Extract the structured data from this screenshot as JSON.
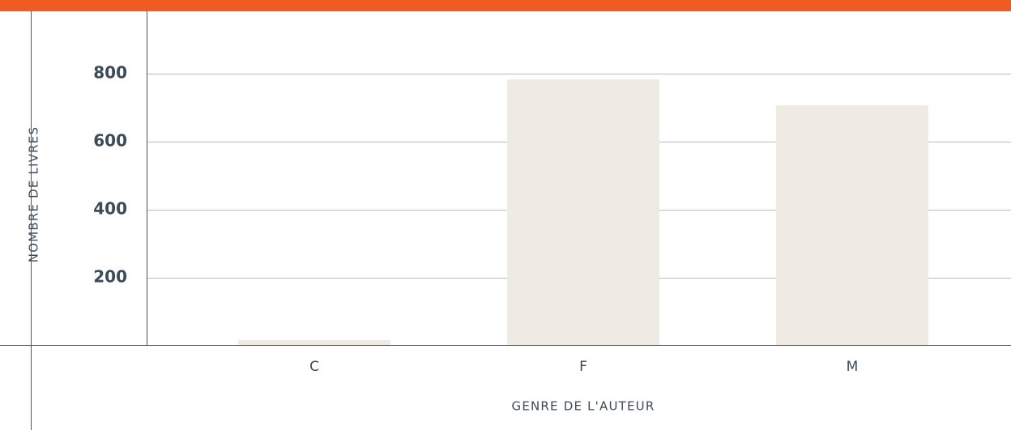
{
  "chart_data": {
    "type": "bar",
    "x_label": "GENRE DE L'AUTEUR",
    "y_label": "NOMBRE DE LIVRES",
    "categories": [
      "C",
      "F",
      "M"
    ],
    "values": [
      17,
      783,
      707
    ],
    "color": "#efebe3",
    "ylim": [
      0,
      983
    ],
    "yticks": [
      200,
      400,
      600,
      800
    ],
    "grid": true
  }
}
